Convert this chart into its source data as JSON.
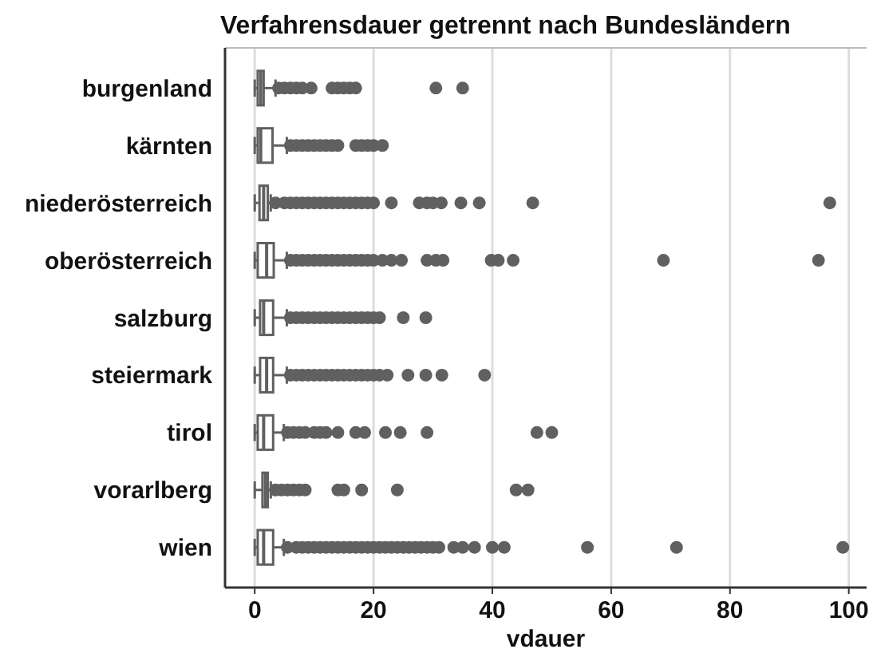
{
  "chart_data": {
    "type": "box",
    "orientation": "horizontal",
    "title": "Verfahrensdauer getrennt nach Bundesländern",
    "xlabel": "vdauer",
    "categories": [
      "burgenland",
      "kärnten",
      "niederösterreich",
      "oberösterreich",
      "salzburg",
      "steiermark",
      "tirol",
      "vorarlberg",
      "wien"
    ],
    "xlim": [
      -5,
      103
    ],
    "xticks": [
      0,
      20,
      40,
      60,
      80,
      100
    ],
    "grid": "x",
    "color": "#606060",
    "boxes": [
      {
        "low": 0,
        "q1": 0.5,
        "median": 1,
        "q3": 1.5,
        "high": 3.5,
        "outliers": [
          4,
          5,
          6,
          7,
          8,
          9.5,
          13,
          14,
          15,
          16,
          17,
          30.5,
          35
        ]
      },
      {
        "low": 0,
        "q1": 0.5,
        "median": 1,
        "q3": 3,
        "high": 5.4,
        "outliers": [
          6,
          7,
          8,
          9,
          10,
          11,
          12,
          13,
          14,
          17,
          18,
          19,
          20,
          21.5
        ]
      },
      {
        "low": 0,
        "q1": 0.8,
        "median": 1.5,
        "q3": 2.2,
        "high": 2.7,
        "outliers": [
          3.5,
          5,
          6,
          7,
          8,
          9,
          10,
          11,
          12,
          13,
          14,
          15,
          16,
          17,
          18,
          19,
          20,
          23,
          27.7,
          29,
          30,
          31.4,
          34.7,
          37.8,
          46.8,
          96.8
        ]
      },
      {
        "low": 0,
        "q1": 0.5,
        "median": 2,
        "q3": 3.2,
        "high": 5.4,
        "outliers": [
          6,
          7,
          8,
          9,
          10,
          11,
          12,
          13,
          14,
          15,
          16,
          17,
          18,
          19,
          20,
          21.5,
          23,
          24.7,
          29,
          30.5,
          31.7,
          39.8,
          41,
          43.5,
          68.8,
          94.9
        ]
      },
      {
        "low": 0,
        "q1": 0.9,
        "median": 1.5,
        "q3": 3.1,
        "high": 5.4,
        "outliers": [
          6,
          7,
          8,
          9,
          10,
          11,
          12,
          13,
          14,
          15,
          16,
          17,
          18,
          19,
          20,
          21,
          25,
          28.8
        ]
      },
      {
        "low": 0,
        "q1": 0.9,
        "median": 2,
        "q3": 3.1,
        "high": 5.4,
        "outliers": [
          6,
          7,
          8,
          9,
          10,
          11,
          12,
          13,
          14,
          15,
          16,
          17,
          18,
          19,
          20,
          21,
          22.3,
          25.8,
          28.8,
          31.5,
          38.7
        ]
      },
      {
        "low": 0,
        "q1": 0.5,
        "median": 1.5,
        "q3": 3.1,
        "high": 4.9,
        "outliers": [
          5.5,
          6.5,
          7.5,
          8.5,
          10,
          11,
          12,
          14,
          17,
          18.5,
          22,
          24.5,
          29,
          47.5,
          50
        ]
      },
      {
        "low": 0,
        "q1": 1.3,
        "median": 1.8,
        "q3": 2.2,
        "high": 2.7,
        "outliers": [
          3.5,
          4.5,
          5.5,
          6.5,
          7.5,
          8.5,
          14,
          15,
          18,
          24,
          44,
          46
        ]
      },
      {
        "low": 0,
        "q1": 0.5,
        "median": 1.5,
        "q3": 3.1,
        "high": 4.9,
        "outliers": [
          5.5,
          7,
          8,
          9,
          10,
          11,
          12,
          13,
          14,
          15,
          16,
          17,
          18,
          19,
          20,
          21,
          22,
          23,
          24,
          25,
          26,
          27,
          28,
          29,
          30,
          31,
          33.5,
          35,
          37,
          40,
          42,
          56,
          71,
          99
        ]
      }
    ]
  }
}
